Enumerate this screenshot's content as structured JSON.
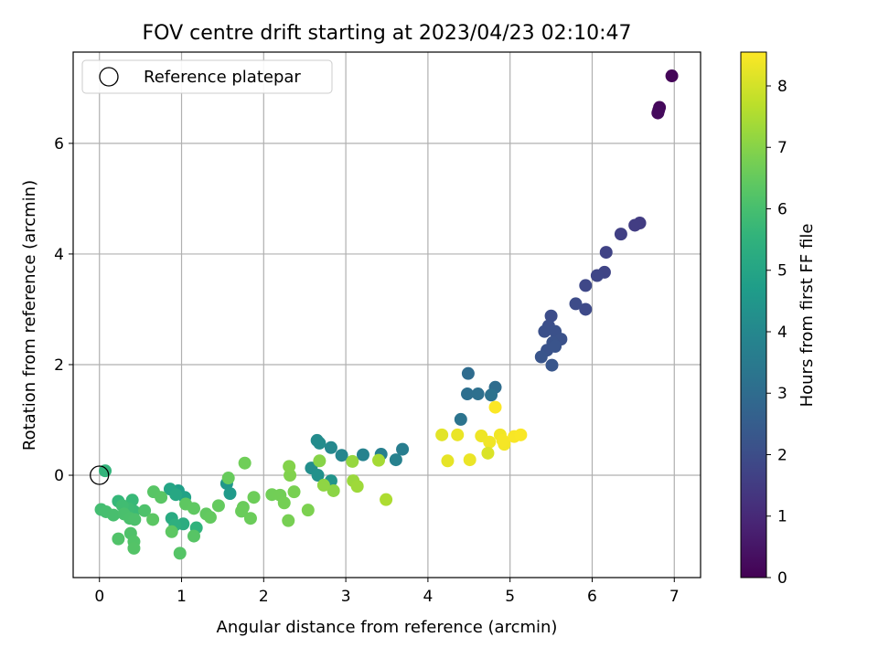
{
  "chart_data": {
    "type": "scatter",
    "title": "FOV centre drift starting at 2023/04/23 02:10:47",
    "xlabel": "Angular distance from reference (arcmin)",
    "ylabel": "Rotation from reference (arcmin)",
    "xlim": [
      -0.32,
      7.32
    ],
    "ylim": [
      -1.85,
      7.65
    ],
    "xticks": [
      0,
      1,
      2,
      3,
      4,
      5,
      6,
      7
    ],
    "yticks": [
      0,
      2,
      4,
      6
    ],
    "grid": true,
    "legend": {
      "location": "upper-left",
      "entries": [
        {
          "label": "Reference platepar",
          "marker": "open-circle"
        }
      ]
    },
    "reference_point": {
      "x": 0,
      "y": 0
    },
    "colorbar": {
      "label": "Hours from first FF file",
      "colormap": "viridis",
      "range": [
        0,
        8.55
      ],
      "ticks": [
        0,
        1,
        2,
        3,
        4,
        5,
        6,
        7,
        8
      ]
    },
    "points": [
      {
        "x": 6.97,
        "y": 7.22,
        "h": 0.1
      },
      {
        "x": 6.82,
        "y": 6.65,
        "h": 0.15
      },
      {
        "x": 6.81,
        "y": 6.6,
        "h": 0.2
      },
      {
        "x": 6.8,
        "y": 6.55,
        "h": 0.22
      },
      {
        "x": 6.58,
        "y": 4.56,
        "h": 1.5
      },
      {
        "x": 6.52,
        "y": 4.52,
        "h": 1.55
      },
      {
        "x": 6.35,
        "y": 4.36,
        "h": 1.62
      },
      {
        "x": 6.17,
        "y": 4.03,
        "h": 1.7
      },
      {
        "x": 6.15,
        "y": 3.67,
        "h": 1.75
      },
      {
        "x": 6.06,
        "y": 3.61,
        "h": 1.8
      },
      {
        "x": 5.92,
        "y": 3.43,
        "h": 1.85
      },
      {
        "x": 5.92,
        "y": 3.0,
        "h": 1.9
      },
      {
        "x": 5.8,
        "y": 3.1,
        "h": 1.95
      },
      {
        "x": 5.5,
        "y": 2.88,
        "h": 2.0
      },
      {
        "x": 5.47,
        "y": 2.7,
        "h": 2.05
      },
      {
        "x": 5.42,
        "y": 2.6,
        "h": 2.1
      },
      {
        "x": 5.55,
        "y": 2.6,
        "h": 2.12
      },
      {
        "x": 5.62,
        "y": 2.46,
        "h": 2.15
      },
      {
        "x": 5.52,
        "y": 2.4,
        "h": 2.18
      },
      {
        "x": 5.45,
        "y": 2.26,
        "h": 2.2
      },
      {
        "x": 5.55,
        "y": 2.33,
        "h": 2.22
      },
      {
        "x": 5.38,
        "y": 2.14,
        "h": 2.25
      },
      {
        "x": 5.51,
        "y": 1.99,
        "h": 2.28
      },
      {
        "x": 4.49,
        "y": 1.84,
        "h": 3.0
      },
      {
        "x": 4.82,
        "y": 1.59,
        "h": 3.05
      },
      {
        "x": 4.48,
        "y": 1.47,
        "h": 3.1
      },
      {
        "x": 4.61,
        "y": 1.47,
        "h": 3.15
      },
      {
        "x": 4.77,
        "y": 1.45,
        "h": 3.2
      },
      {
        "x": 4.4,
        "y": 1.01,
        "h": 3.3
      },
      {
        "x": 3.69,
        "y": 0.47,
        "h": 3.6
      },
      {
        "x": 3.43,
        "y": 0.38,
        "h": 3.7
      },
      {
        "x": 3.61,
        "y": 0.28,
        "h": 3.75
      },
      {
        "x": 3.21,
        "y": 0.37,
        "h": 3.8
      },
      {
        "x": 2.95,
        "y": 0.36,
        "h": 3.9
      },
      {
        "x": 2.82,
        "y": 0.5,
        "h": 4.0
      },
      {
        "x": 2.65,
        "y": 0.63,
        "h": 4.1
      },
      {
        "x": 2.68,
        "y": 0.58,
        "h": 4.15
      },
      {
        "x": 2.58,
        "y": 0.13,
        "h": 4.2
      },
      {
        "x": 2.66,
        "y": 0.0,
        "h": 4.3
      },
      {
        "x": 2.82,
        "y": -0.1,
        "h": 4.4
      },
      {
        "x": 1.55,
        "y": -0.15,
        "h": 4.5
      },
      {
        "x": 1.59,
        "y": -0.33,
        "h": 4.6
      },
      {
        "x": 0.96,
        "y": -0.28,
        "h": 4.8
      },
      {
        "x": 1.04,
        "y": -0.4,
        "h": 4.9
      },
      {
        "x": 0.86,
        "y": -0.25,
        "h": 5.0
      },
      {
        "x": 0.93,
        "y": -0.35,
        "h": 5.1
      },
      {
        "x": 0.88,
        "y": -0.78,
        "h": 5.2
      },
      {
        "x": 1.02,
        "y": -0.88,
        "h": 5.3
      },
      {
        "x": 0.92,
        "y": -0.9,
        "h": 5.4
      },
      {
        "x": 1.18,
        "y": -0.95,
        "h": 5.5
      },
      {
        "x": 0.07,
        "y": 0.08,
        "h": 5.6
      },
      {
        "x": 0.23,
        "y": -0.47,
        "h": 5.7
      },
      {
        "x": 0.4,
        "y": -0.45,
        "h": 5.75
      },
      {
        "x": 0.42,
        "y": -0.65,
        "h": 5.8
      },
      {
        "x": 0.35,
        "y": -0.6,
        "h": 5.85
      },
      {
        "x": 0.28,
        "y": -0.55,
        "h": 5.9
      },
      {
        "x": 0.02,
        "y": -0.62,
        "h": 5.95
      },
      {
        "x": 0.08,
        "y": -0.66,
        "h": 6.0
      },
      {
        "x": 0.17,
        "y": -0.72,
        "h": 6.02
      },
      {
        "x": 0.3,
        "y": -0.7,
        "h": 6.05
      },
      {
        "x": 0.37,
        "y": -0.78,
        "h": 6.08
      },
      {
        "x": 0.43,
        "y": -0.8,
        "h": 6.1
      },
      {
        "x": 0.55,
        "y": -0.64,
        "h": 6.12
      },
      {
        "x": 0.38,
        "y": -1.05,
        "h": 6.15
      },
      {
        "x": 0.23,
        "y": -1.15,
        "h": 6.18
      },
      {
        "x": 0.42,
        "y": -1.2,
        "h": 6.2
      },
      {
        "x": 0.42,
        "y": -1.32,
        "h": 6.22
      },
      {
        "x": 0.98,
        "y": -1.41,
        "h": 6.25
      },
      {
        "x": 1.15,
        "y": -1.1,
        "h": 6.28
      },
      {
        "x": 0.66,
        "y": -0.3,
        "h": 6.3
      },
      {
        "x": 0.75,
        "y": -0.4,
        "h": 6.32
      },
      {
        "x": 0.65,
        "y": -0.8,
        "h": 6.35
      },
      {
        "x": 0.88,
        "y": -1.02,
        "h": 6.38
      },
      {
        "x": 1.05,
        "y": -0.52,
        "h": 6.4
      },
      {
        "x": 1.15,
        "y": -0.6,
        "h": 6.42
      },
      {
        "x": 1.3,
        "y": -0.7,
        "h": 6.45
      },
      {
        "x": 1.35,
        "y": -0.76,
        "h": 6.48
      },
      {
        "x": 1.45,
        "y": -0.55,
        "h": 6.5
      },
      {
        "x": 1.57,
        "y": -0.05,
        "h": 6.55
      },
      {
        "x": 1.75,
        "y": -0.58,
        "h": 6.58
      },
      {
        "x": 1.73,
        "y": -0.65,
        "h": 6.6
      },
      {
        "x": 1.84,
        "y": -0.78,
        "h": 6.62
      },
      {
        "x": 1.88,
        "y": -0.4,
        "h": 6.65
      },
      {
        "x": 1.77,
        "y": 0.22,
        "h": 6.68
      },
      {
        "x": 2.1,
        "y": -0.35,
        "h": 6.7
      },
      {
        "x": 2.2,
        "y": -0.36,
        "h": 6.72
      },
      {
        "x": 2.25,
        "y": -0.5,
        "h": 6.75
      },
      {
        "x": 2.3,
        "y": -0.82,
        "h": 6.78
      },
      {
        "x": 2.37,
        "y": -0.3,
        "h": 6.8
      },
      {
        "x": 2.54,
        "y": -0.63,
        "h": 6.85
      },
      {
        "x": 2.32,
        "y": 0.0,
        "h": 6.9
      },
      {
        "x": 2.31,
        "y": 0.16,
        "h": 6.95
      },
      {
        "x": 2.68,
        "y": 0.26,
        "h": 7.0
      },
      {
        "x": 2.85,
        "y": -0.28,
        "h": 7.05
      },
      {
        "x": 2.73,
        "y": -0.18,
        "h": 7.1
      },
      {
        "x": 3.08,
        "y": 0.25,
        "h": 7.2
      },
      {
        "x": 3.09,
        "y": -0.1,
        "h": 7.25
      },
      {
        "x": 3.14,
        "y": -0.2,
        "h": 7.3
      },
      {
        "x": 3.4,
        "y": 0.27,
        "h": 7.4
      },
      {
        "x": 3.49,
        "y": -0.44,
        "h": 7.5
      },
      {
        "x": 4.17,
        "y": 0.73,
        "h": 8.2
      },
      {
        "x": 4.24,
        "y": 0.26,
        "h": 8.25
      },
      {
        "x": 4.36,
        "y": 0.73,
        "h": 8.3
      },
      {
        "x": 4.51,
        "y": 0.28,
        "h": 8.32
      },
      {
        "x": 4.65,
        "y": 0.71,
        "h": 8.35
      },
      {
        "x": 4.75,
        "y": 0.6,
        "h": 8.38
      },
      {
        "x": 4.73,
        "y": 0.4,
        "h": 8.1
      },
      {
        "x": 4.88,
        "y": 0.73,
        "h": 8.4
      },
      {
        "x": 4.93,
        "y": 0.56,
        "h": 8.42
      },
      {
        "x": 4.91,
        "y": 0.63,
        "h": 8.45
      },
      {
        "x": 5.05,
        "y": 0.7,
        "h": 8.48
      },
      {
        "x": 5.13,
        "y": 0.73,
        "h": 8.5
      },
      {
        "x": 4.82,
        "y": 1.23,
        "h": 8.52
      }
    ]
  }
}
